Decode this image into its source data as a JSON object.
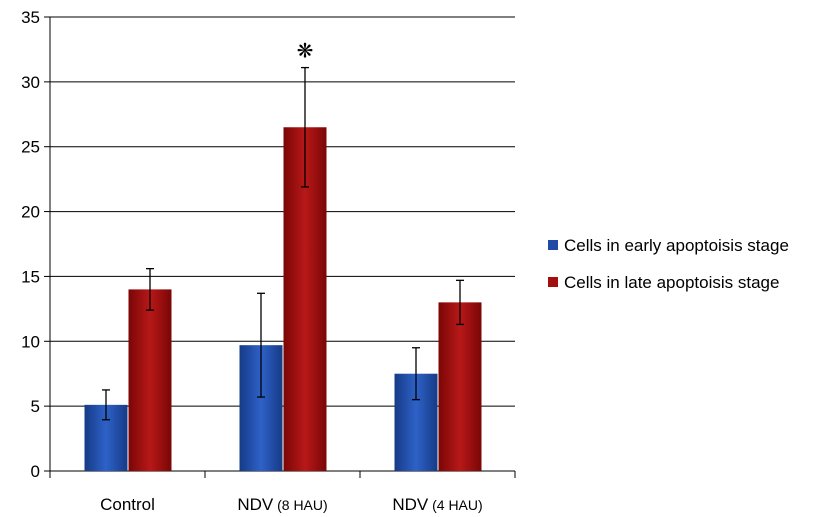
{
  "chart_data": {
    "type": "bar",
    "title": "",
    "xlabel": "",
    "ylabel": "",
    "ylim": [
      0,
      35
    ],
    "yticks": [
      0,
      5,
      10,
      15,
      20,
      25,
      30,
      35
    ],
    "grid": true,
    "legend_position": "right",
    "categories": [
      "Control",
      "NDV (8 HAU)",
      "NDV (4 HAU)"
    ],
    "series": [
      {
        "name": "Cells in early apoptoisis stage",
        "color": "#1f4aa6",
        "values": [
          5.1,
          9.7,
          7.5
        ],
        "errors": [
          1.15,
          4.0,
          2.0
        ]
      },
      {
        "name": "Cells in late apoptoisis stage",
        "color": "#a10f0f",
        "values": [
          14.0,
          26.5,
          13.0
        ],
        "errors": [
          1.6,
          4.6,
          1.7
        ]
      }
    ],
    "annotations": [
      {
        "text": "❋",
        "category": "NDV (8 HAU)",
        "series": 1
      }
    ]
  }
}
